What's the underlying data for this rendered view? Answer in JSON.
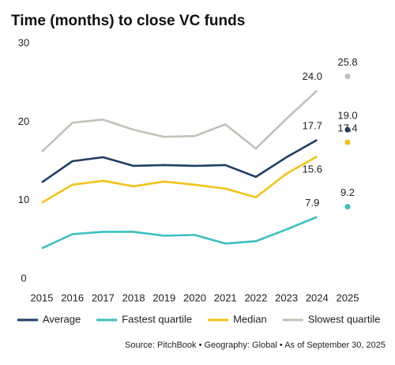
{
  "chart_data": {
    "type": "line",
    "title": "Time (months) to close VC funds",
    "x": [
      2015,
      2016,
      2017,
      2018,
      2019,
      2020,
      2021,
      2022,
      2023,
      2024,
      2025
    ],
    "ylim": [
      0,
      30
    ],
    "yticks": [
      0,
      10,
      20,
      30
    ],
    "series": [
      {
        "name": "Average",
        "color": "#1f3f66",
        "values": [
          12.3,
          15.0,
          15.5,
          14.4,
          14.5,
          14.4,
          14.5,
          13.0,
          15.5,
          17.7,
          19.0
        ],
        "value_labels": [
          null,
          null,
          null,
          null,
          null,
          null,
          null,
          null,
          null,
          "17.7",
          "19.0"
        ]
      },
      {
        "name": "Fastest quartile",
        "color": "#3bbfbf",
        "values": [
          3.9,
          5.7,
          6.0,
          6.0,
          5.5,
          5.6,
          4.5,
          4.8,
          6.3,
          7.9,
          9.2
        ],
        "value_labels": [
          null,
          null,
          null,
          null,
          null,
          null,
          null,
          null,
          null,
          "7.9",
          "9.2"
        ]
      },
      {
        "name": "Median",
        "color": "#f2c318",
        "values": [
          9.7,
          12.0,
          12.5,
          11.8,
          12.4,
          12.0,
          11.5,
          10.4,
          13.4,
          15.6,
          17.4
        ],
        "value_labels": [
          null,
          null,
          null,
          null,
          null,
          null,
          null,
          null,
          null,
          "15.6",
          "17.4"
        ]
      },
      {
        "name": "Slowest quartile",
        "color": "#c4c0b8",
        "values": [
          16.2,
          19.9,
          20.3,
          19.0,
          18.1,
          18.2,
          19.7,
          16.6,
          20.4,
          24.0,
          25.8
        ],
        "value_labels": [
          null,
          null,
          null,
          null,
          null,
          null,
          null,
          null,
          null,
          "24.0",
          "25.8"
        ]
      }
    ],
    "source": "Source: PitchBook  •  Geography: Global  •  As of September 30, 2025"
  }
}
